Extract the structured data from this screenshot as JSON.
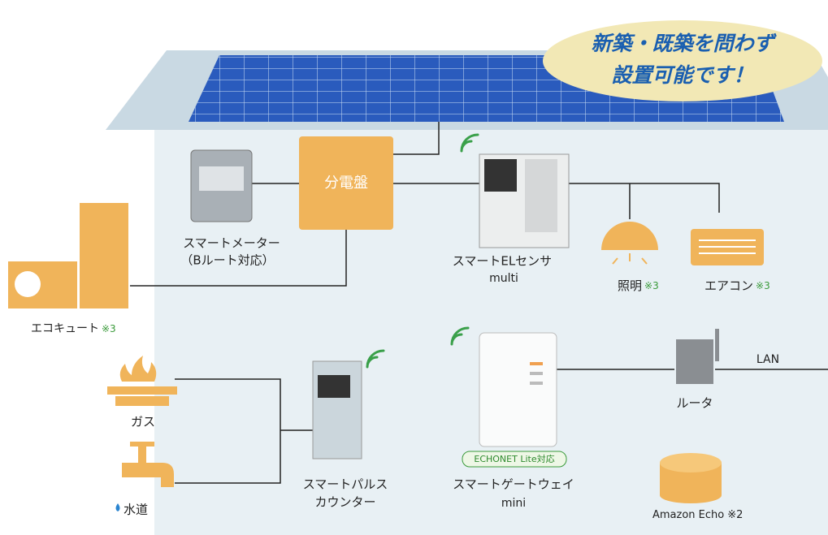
{
  "callout": {
    "line1": "新築・既築を問わず",
    "line2": "設置可能です！"
  },
  "nodes": [
    {
      "label": "分電盤"
    },
    {
      "label": "スマートメーター",
      "sublabel": "（Bルート対応）"
    },
    {
      "label": "スマートELセンサ",
      "sublabel": "multi"
    },
    {
      "label": "照明",
      "note": "※3"
    },
    {
      "label": "エアコン",
      "note": "※3"
    },
    {
      "label": "エコキュート",
      "note": "※3"
    },
    {
      "label": "ガス"
    },
    {
      "label": "水道"
    },
    {
      "label": "スマートパルス",
      "sublabel": "カウンター"
    },
    {
      "label": "スマートゲートウェイ",
      "sublabel": "mini",
      "badge": "ECHONET Lite対応"
    },
    {
      "label": "ルータ"
    },
    {
      "label": "Amazon Echo",
      "note": "※2"
    }
  ],
  "link_label": "LAN"
}
